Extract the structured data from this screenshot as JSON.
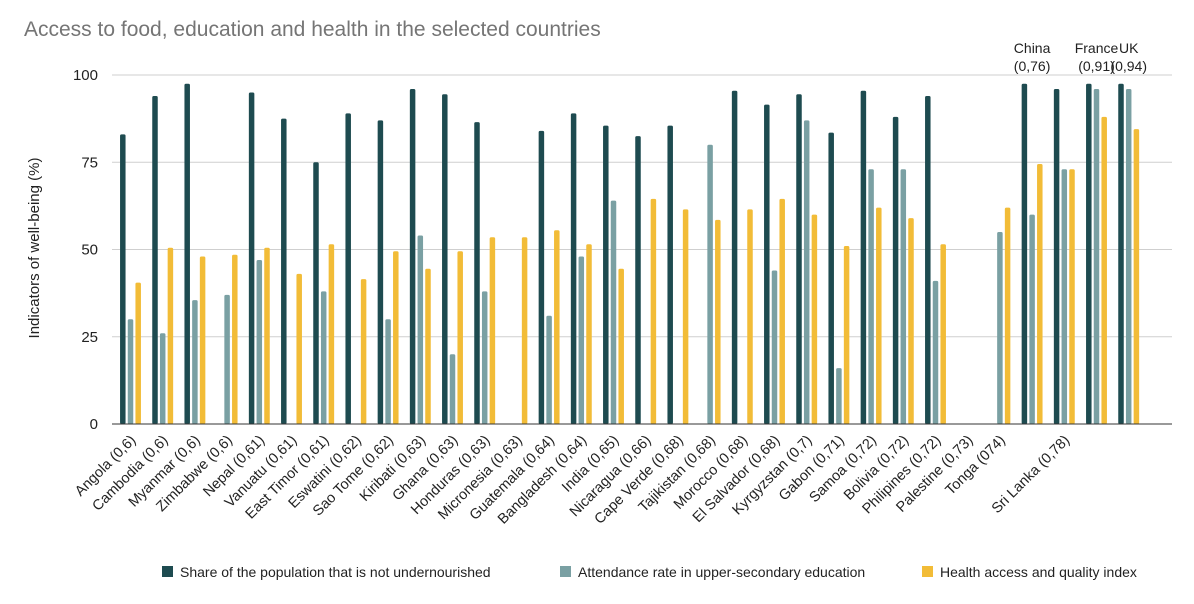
{
  "chart_data": {
    "type": "bar",
    "title": "Access to food, education and health in the selected countries",
    "ylabel": "Indicators of well-being (%)",
    "ylim": [
      0,
      100
    ],
    "yticks": [
      0,
      25,
      50,
      75,
      100
    ],
    "grid": true,
    "legend_position": "bottom-right",
    "categories": [
      "Angola (0,6)",
      "Cambodia (0,6)",
      "Myanmar (0,6)",
      "Zimbabwe (0,6)",
      "Nepal (0,61)",
      "Vanuatu (0,61)",
      "East Timor (0,61)",
      "Eswatini (0,62)",
      "Sao Tome (0,62)",
      "Kiribati (0,63)",
      "Ghana (0,63)",
      "Honduras (0,63)",
      "Micronesia (0,63)",
      "Guatemala (0,64)",
      "Bangladesh (0,64)",
      "India (0,65)",
      "Nicaragua (0,66)",
      "Cape Verde (0,68)",
      "Tajikistan (0,68)",
      "Morocco (0,68)",
      "El Salvador (0,68)",
      "Kyrgyzstan (0,7)",
      "Gabon (0,71)",
      "Samoa (0,72)",
      "Bolivia (0,72)",
      "Philipines (0,72)",
      "Palestine (0,73)",
      "Tonga (074)",
      "",
      "Sri Lanka (0,78)",
      "",
      ""
    ],
    "series": [
      {
        "name": "Share of the population that is not undernourished",
        "color": "#1e4b50",
        "values": [
          83,
          94,
          97.5,
          null,
          95,
          87.5,
          75,
          89,
          87,
          96,
          94.5,
          86.5,
          null,
          84,
          89,
          85.5,
          82.5,
          85.5,
          null,
          95.5,
          91.5,
          94.5,
          83.5,
          95.5,
          88,
          94,
          null,
          null,
          97.5,
          96,
          97.5,
          97.5
        ]
      },
      {
        "name": "Attendance rate in upper-secondary education",
        "color": "#7aa0a3",
        "values": [
          30,
          26,
          35.5,
          37,
          47,
          null,
          38,
          null,
          30,
          54,
          20,
          38,
          null,
          31,
          48,
          64,
          null,
          null,
          80,
          null,
          44,
          87,
          16,
          73,
          73,
          41,
          null,
          55,
          60,
          73,
          96,
          96
        ]
      },
      {
        "name": "Health access and quality index",
        "color": "#f2bc37",
        "values": [
          40.5,
          50.5,
          48,
          48.5,
          50.5,
          43,
          51.5,
          41.5,
          49.5,
          44.5,
          49.5,
          53.5,
          53.5,
          55.5,
          51.5,
          44.5,
          64.5,
          61.5,
          58.5,
          61.5,
          64.5,
          60,
          51,
          62,
          59,
          51.5,
          null,
          62,
          74.5,
          73,
          88,
          84.5
        ]
      }
    ],
    "annotations": [
      {
        "category_index": 28,
        "lines": [
          "China",
          "(0,76)"
        ]
      },
      {
        "category_index": 30,
        "lines": [
          "France",
          " (0,91)"
        ]
      },
      {
        "category_index": 31,
        "lines": [
          "UK",
          "(0,94)"
        ]
      }
    ]
  }
}
